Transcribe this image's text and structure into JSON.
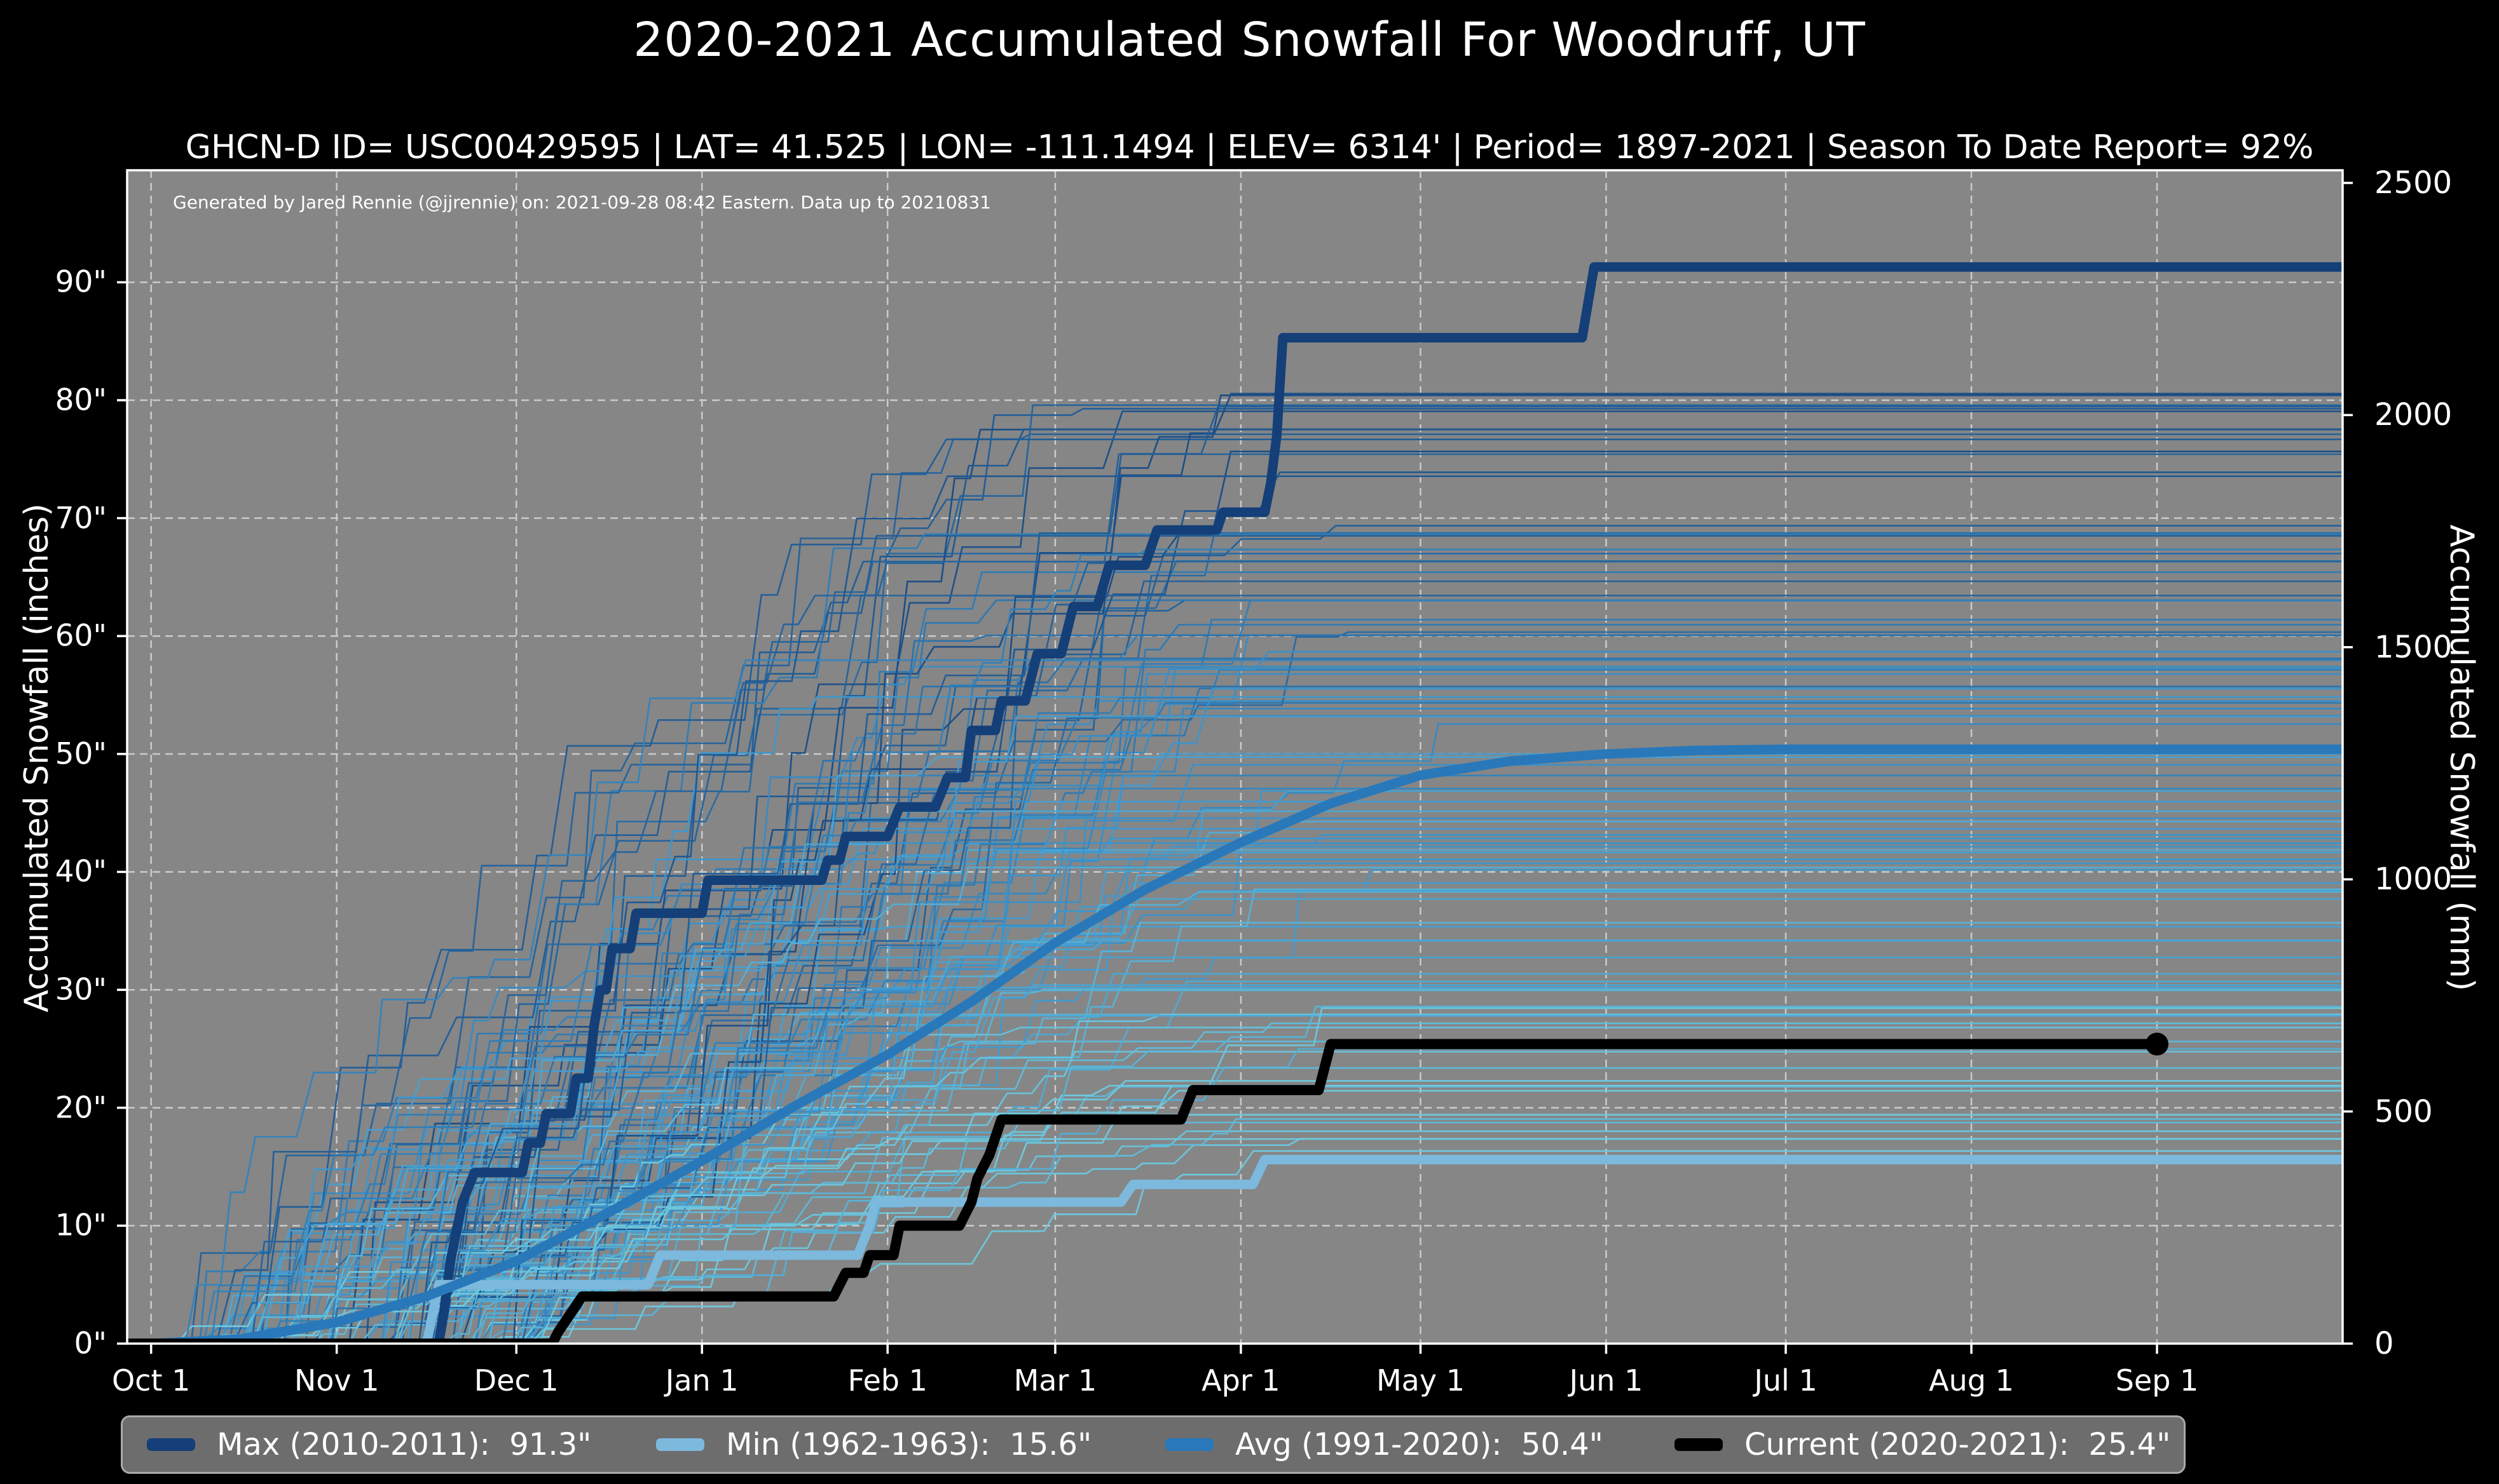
{
  "title": "2020-2021 Accumulated Snowfall For Woodruff, UT",
  "subtitle": "GHCN-D ID= USC00429595 | LAT= 41.525 | LON= -111.1494 | ELEV= 6314' | Period= 1897-2021 | Season To Date Report= 92%",
  "annotation": "Generated by Jared Rennie (@jjrennie) on: 2021-09-28 08:42 Eastern. Data up to 20210831",
  "colors": {
    "page_bg": "#000000",
    "plot_bg": "#868686",
    "grid": "#cfcfcf",
    "spine": "#ffffff",
    "tick": "#ffffff",
    "text": "#ffffff",
    "legend_bg": "#6d6d6d",
    "legend_border": "#aaaaaa"
  },
  "chart_data": {
    "type": "line",
    "title": "2020-2021 Accumulated Snowfall For Woodruff, UT",
    "grid": "on",
    "legend_position": "bottom",
    "x_axis": {
      "range_days": [
        -4,
        366
      ],
      "tick_days": [
        0,
        31,
        61,
        92,
        123,
        151,
        182,
        212,
        243,
        273,
        304,
        335
      ],
      "tick_labels": [
        "Oct 1",
        "Nov 1",
        "Dec 1",
        "Jan 1",
        "Feb 1",
        "Mar 1",
        "Apr 1",
        "May 1",
        "Jun 1",
        "Jul 1",
        "Aug 1",
        "Sep 1"
      ]
    },
    "y_axis_left": {
      "label": "Accumulated Snowfall (inches)",
      "range_inches": [
        0,
        99.5
      ],
      "tick_values": [
        0,
        10,
        20,
        30,
        40,
        50,
        60,
        70,
        80,
        90
      ],
      "tick_labels": [
        "0\"",
        "10\"",
        "20\"",
        "30\"",
        "40\"",
        "50\"",
        "60\"",
        "70\"",
        "80\"",
        "90\""
      ]
    },
    "y_axis_right": {
      "label": "Accumulated Snowfall (mm)",
      "mm_per_inch": 25.4,
      "tick_values_mm": [
        0,
        500,
        1000,
        1500,
        2000,
        2500
      ],
      "tick_labels": [
        "0",
        "500",
        "1000",
        "1500",
        "2000",
        "2500"
      ]
    },
    "series": [
      {
        "name": "Max",
        "season": "2010-2011",
        "total_inches": 91.3,
        "legend_label": "Max (2010-2011):  91.3\"",
        "color": "#143f78",
        "width": 15,
        "points": [
          [
            -4,
            0
          ],
          [
            48,
            0
          ],
          [
            49,
            3
          ],
          [
            50,
            7
          ],
          [
            51,
            9.5
          ],
          [
            52,
            12
          ],
          [
            54,
            14.5
          ],
          [
            62,
            14.5
          ],
          [
            63,
            17
          ],
          [
            65,
            17
          ],
          [
            66,
            19.5
          ],
          [
            70,
            19.5
          ],
          [
            71,
            22.5
          ],
          [
            73,
            22.5
          ],
          [
            74,
            27
          ],
          [
            75,
            30
          ],
          [
            76,
            30
          ],
          [
            77,
            33.5
          ],
          [
            80,
            33.5
          ],
          [
            81,
            36.5
          ],
          [
            92,
            36.5
          ],
          [
            93,
            39.3
          ],
          [
            112,
            39.3
          ],
          [
            113,
            41
          ],
          [
            115,
            41
          ],
          [
            116,
            43
          ],
          [
            123,
            43
          ],
          [
            125,
            45.5
          ],
          [
            131,
            45.5
          ],
          [
            133,
            48
          ],
          [
            136,
            48
          ],
          [
            137,
            52
          ],
          [
            141,
            52
          ],
          [
            142,
            54.5
          ],
          [
            146,
            54.5
          ],
          [
            148,
            58.5
          ],
          [
            152,
            58.5
          ],
          [
            154,
            62.5
          ],
          [
            158,
            62.5
          ],
          [
            160,
            66
          ],
          [
            166,
            66
          ],
          [
            168,
            69
          ],
          [
            178,
            69
          ],
          [
            179,
            70.5
          ],
          [
            186,
            70.5
          ],
          [
            187,
            73
          ],
          [
            188,
            77
          ],
          [
            189,
            85.3
          ],
          [
            239,
            85.3
          ],
          [
            241,
            91.3
          ],
          [
            366,
            91.3
          ]
        ]
      },
      {
        "name": "Min",
        "season": "1962-1963",
        "total_inches": 15.6,
        "legend_label": "Min (1962-1963):  15.6\"",
        "color": "#7db8dd",
        "width": 15,
        "points": [
          [
            -4,
            0
          ],
          [
            46,
            0
          ],
          [
            47,
            2.5
          ],
          [
            48,
            5
          ],
          [
            83,
            5
          ],
          [
            85,
            7.5
          ],
          [
            118,
            7.5
          ],
          [
            120,
            10
          ],
          [
            121,
            12
          ],
          [
            162,
            12
          ],
          [
            164,
            13.5
          ],
          [
            184,
            13.5
          ],
          [
            186,
            15.6
          ],
          [
            366,
            15.6
          ]
        ]
      },
      {
        "name": "Avg",
        "season": "1991-2020",
        "total_inches": 50.4,
        "legend_label": "Avg (1991-2020):  50.4\"",
        "color": "#2878ba",
        "width": 15,
        "points": [
          [
            -4,
            0
          ],
          [
            0,
            0
          ],
          [
            15,
            0.4
          ],
          [
            31,
            1.8
          ],
          [
            46,
            4
          ],
          [
            61,
            7
          ],
          [
            76,
            11
          ],
          [
            92,
            15.5
          ],
          [
            107,
            20
          ],
          [
            123,
            24.5
          ],
          [
            137,
            29
          ],
          [
            151,
            34
          ],
          [
            166,
            38.5
          ],
          [
            182,
            42.5
          ],
          [
            197,
            45.8
          ],
          [
            212,
            48.2
          ],
          [
            227,
            49.4
          ],
          [
            243,
            50.0
          ],
          [
            258,
            50.3
          ],
          [
            273,
            50.4
          ],
          [
            366,
            50.4
          ]
        ]
      },
      {
        "name": "Current",
        "season": "2020-2021",
        "total_inches": 25.4,
        "legend_label": "Current (2020-2021):  25.4\"",
        "color": "#000000",
        "width": 16,
        "marker": {
          "day": 335,
          "value": 25.4,
          "radius": 18
        },
        "points": [
          [
            -4,
            0
          ],
          [
            67,
            0
          ],
          [
            68,
            1
          ],
          [
            70,
            2.5
          ],
          [
            72,
            4
          ],
          [
            114,
            4
          ],
          [
            116,
            6
          ],
          [
            119,
            6
          ],
          [
            120,
            7.5
          ],
          [
            124,
            7.5
          ],
          [
            125,
            10
          ],
          [
            135,
            10
          ],
          [
            137,
            12
          ],
          [
            138,
            14
          ],
          [
            140,
            16
          ],
          [
            142,
            19
          ],
          [
            172,
            19
          ],
          [
            174,
            21.5
          ],
          [
            195,
            21.5
          ],
          [
            197,
            25.4
          ],
          [
            335,
            25.4
          ]
        ]
      }
    ],
    "background_ensemble": {
      "description": "Individual seasons 1897-2021 (thin lines)",
      "count": 112,
      "seed": 20210928,
      "total_range_inches": [
        17,
        82
      ],
      "palette": [
        "#6ec9de",
        "#3b93cc",
        "#1c4e86"
      ],
      "line_width": 2.6
    }
  }
}
